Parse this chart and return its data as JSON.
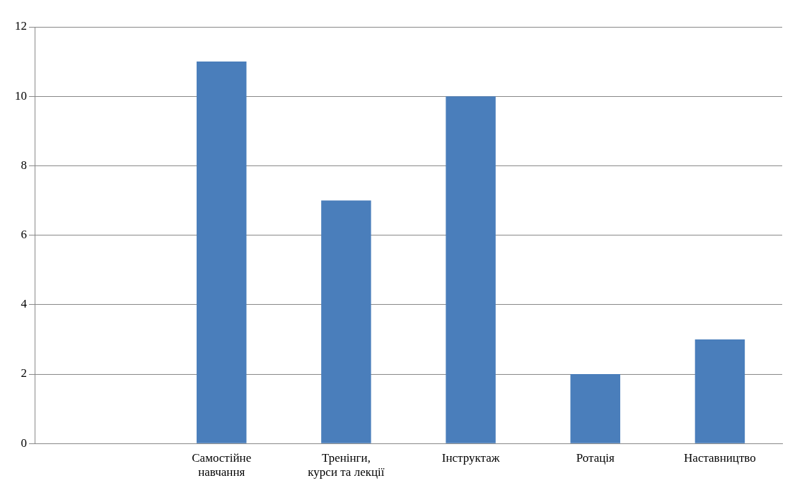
{
  "chart_data": {
    "type": "bar",
    "categories": [
      null,
      "Самостійне\nнавчання",
      "Тренінги,\nкурси та лекції",
      "Інструктаж",
      "Ротація",
      "Наставництво"
    ],
    "values": [
      null,
      11,
      7,
      10,
      2,
      3
    ],
    "color": "#4a7ebb",
    "ylim": [
      0,
      12
    ],
    "yticks": [
      0,
      2,
      4,
      6,
      8,
      10,
      12
    ],
    "grid": "y",
    "legend": false
  }
}
